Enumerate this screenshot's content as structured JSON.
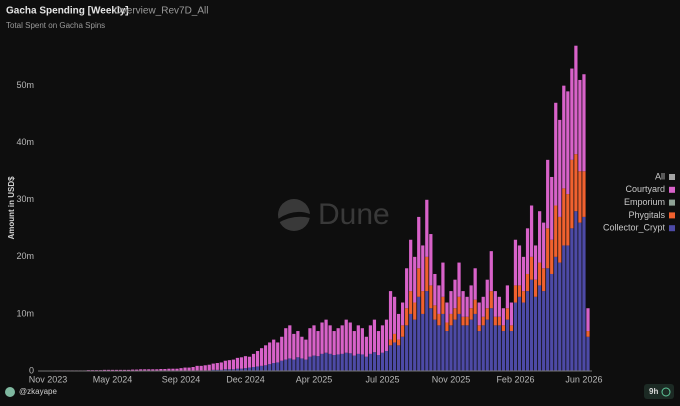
{
  "chart_data": {
    "type": "stacked-bar",
    "title": "Gacha Spending [Weekly]",
    "query_name": "Overview_Rev7D_All",
    "subtitle": "Total Spent on Gacha Spins",
    "y_label": "Amount in USD$",
    "watermark": "Dune",
    "author": "@zkayape",
    "age": "9h",
    "categories": [
      null,
      "Nov 2023",
      null,
      null,
      null,
      null,
      null,
      null,
      null,
      null,
      null,
      null,
      null,
      null,
      null,
      null,
      null,
      "May 2024",
      null,
      null,
      null,
      null,
      null,
      null,
      null,
      null,
      null,
      null,
      null,
      null,
      null,
      null,
      null,
      null,
      "Sep 2024",
      null,
      null,
      null,
      null,
      null,
      null,
      null,
      null,
      null,
      null,
      null,
      null,
      null,
      null,
      null,
      "Dec 2024",
      null,
      null,
      null,
      null,
      null,
      null,
      null,
      null,
      null,
      null,
      null,
      null,
      null,
      null,
      null,
      null,
      "Apr 2025",
      null,
      null,
      null,
      null,
      null,
      null,
      null,
      null,
      null,
      null,
      null,
      null,
      null,
      null,
      null,
      null,
      "Jul 2025",
      null,
      null,
      null,
      null,
      null,
      null,
      null,
      null,
      null,
      null,
      null,
      null,
      null,
      null,
      null,
      null,
      "Nov 2025",
      null,
      null,
      null,
      null,
      null,
      null,
      null,
      null,
      null,
      null,
      null,
      null,
      null,
      null,
      null,
      "Feb 2026",
      null,
      null,
      null,
      null,
      null,
      null,
      null,
      null,
      null,
      null,
      null,
      null,
      null,
      null,
      null,
      null,
      "Jun 2026",
      null
    ],
    "series": [
      {
        "name": "All",
        "color": "#a3a3a3",
        "values": [
          0,
          0,
          0,
          0,
          0,
          0,
          0,
          0,
          0,
          0,
          0,
          0,
          0,
          0,
          0,
          0,
          0,
          0,
          0,
          0,
          0,
          0,
          0,
          0,
          0,
          0,
          0,
          0,
          0,
          0,
          0,
          0,
          0,
          0,
          0,
          0,
          0,
          0,
          0,
          0,
          0,
          0,
          0,
          0,
          0,
          0,
          0,
          0,
          0,
          0,
          0,
          0,
          0,
          0,
          0,
          0,
          0,
          0,
          0,
          0,
          0,
          0,
          0,
          0,
          0,
          0,
          0,
          0,
          0,
          0,
          0,
          0,
          0,
          0,
          0,
          0,
          0,
          0,
          0,
          0,
          0,
          0,
          0,
          0,
          0,
          0,
          0,
          0,
          0,
          0,
          0,
          0,
          0,
          0,
          0,
          0,
          0,
          0,
          0,
          0,
          0,
          0,
          0,
          0,
          0,
          0,
          0,
          0,
          0,
          0,
          0,
          0,
          0,
          0,
          0,
          0,
          0,
          0,
          0,
          0,
          0,
          0,
          0,
          0,
          0,
          0,
          0,
          0,
          0,
          0,
          0,
          0,
          0,
          0,
          0,
          0
        ]
      },
      {
        "name": "Courtyard",
        "color": "#d862c9",
        "values": [
          0.05,
          0.05,
          0.05,
          0.1,
          0.1,
          0.1,
          0.1,
          0.1,
          0.1,
          0.1,
          0.1,
          0.15,
          0.15,
          0.15,
          0.15,
          0.2,
          0.2,
          0.2,
          0.2,
          0.2,
          0.2,
          0.2,
          0.25,
          0.25,
          0.3,
          0.3,
          0.3,
          0.3,
          0.3,
          0.35,
          0.35,
          0.4,
          0.4,
          0.4,
          0.5,
          0.6,
          0.6,
          0.7,
          0.8,
          0.8,
          0.9,
          1.0,
          1.1,
          1.2,
          1.3,
          1.5,
          1.6,
          1.7,
          1.9,
          2.0,
          2.1,
          1.9,
          2.3,
          2.7,
          3.1,
          3.5,
          3.8,
          4.1,
          3.5,
          4.2,
          5.5,
          5.8,
          4.5,
          4.6,
          3.8,
          3.5,
          5.0,
          5.3,
          4.4,
          5.5,
          5.8,
          5.0,
          4.2,
          4.6,
          5.0,
          5.8,
          5.4,
          4.3,
          5.0,
          4.6,
          3.5,
          5.0,
          5.7,
          4.2,
          4.8,
          5.5,
          8.5,
          6.5,
          4.5,
          4,
          7,
          9,
          8,
          9,
          8,
          10,
          9,
          5.5,
          5,
          6,
          3.5,
          4,
          5,
          6,
          4.5,
          3.5,
          4,
          5.5,
          4,
          3.5,
          5,
          7,
          4.5,
          3.5,
          3,
          4,
          4,
          8,
          7,
          6,
          8,
          9,
          6,
          9,
          8,
          12,
          11,
          18,
          17,
          18,
          18,
          16,
          19,
          16,
          17,
          4
        ]
      },
      {
        "name": "Emporium",
        "color": "#8fa396",
        "values": [
          0,
          0,
          0,
          0,
          0,
          0,
          0,
          0,
          0,
          0,
          0,
          0,
          0,
          0,
          0,
          0,
          0,
          0,
          0,
          0,
          0,
          0,
          0,
          0,
          0,
          0,
          0,
          0,
          0,
          0,
          0,
          0,
          0,
          0,
          0,
          0,
          0,
          0,
          0,
          0,
          0,
          0,
          0,
          0,
          0,
          0,
          0,
          0,
          0,
          0,
          0,
          0,
          0,
          0,
          0,
          0,
          0,
          0,
          0,
          0,
          0,
          0,
          0,
          0,
          0,
          0,
          0,
          0,
          0,
          0,
          0,
          0,
          0,
          0,
          0,
          0,
          0,
          0,
          0,
          0,
          0,
          0,
          0,
          0,
          0,
          0,
          0,
          0,
          0,
          0,
          0,
          0,
          0,
          0,
          0,
          0,
          0,
          0,
          0,
          0,
          0,
          0,
          0,
          0,
          0,
          0,
          0,
          0,
          0,
          0,
          0,
          0,
          0,
          0,
          0,
          0,
          0,
          0,
          0,
          0,
          0,
          0,
          0,
          0,
          0,
          0,
          0,
          0,
          0,
          0,
          0,
          0,
          0,
          0,
          0,
          0
        ]
      },
      {
        "name": "Phygitals",
        "color": "#f0612f",
        "values": [
          0,
          0,
          0,
          0,
          0,
          0,
          0,
          0,
          0,
          0,
          0,
          0,
          0,
          0,
          0,
          0,
          0,
          0,
          0,
          0,
          0,
          0,
          0,
          0,
          0,
          0,
          0,
          0,
          0,
          0,
          0,
          0,
          0,
          0,
          0,
          0,
          0,
          0,
          0,
          0,
          0,
          0,
          0,
          0,
          0,
          0,
          0,
          0,
          0,
          0,
          0,
          0,
          0,
          0,
          0,
          0,
          0,
          0,
          0,
          0,
          0,
          0,
          0,
          0,
          0,
          0,
          0,
          0,
          0,
          0,
          0,
          0,
          0,
          0,
          0,
          0,
          0,
          0,
          0,
          0,
          0,
          0,
          0,
          0,
          0,
          0,
          1,
          1.5,
          1,
          2,
          3,
          4,
          3,
          5,
          4,
          6,
          4,
          2.5,
          2,
          3,
          1.5,
          2,
          2,
          3,
          1.5,
          1.5,
          2,
          2.5,
          1,
          1.5,
          2,
          3,
          1.5,
          1.5,
          1,
          2,
          1,
          3,
          2,
          2,
          3,
          4,
          3,
          4,
          4,
          7,
          6,
          9,
          8,
          10,
          9,
          12,
          10,
          9,
          8,
          1
        ]
      },
      {
        "name": "Collector_Crypt",
        "color": "#4d4aa6",
        "values": [
          0,
          0,
          0,
          0,
          0,
          0,
          0,
          0,
          0,
          0,
          0,
          0,
          0,
          0,
          0,
          0,
          0,
          0,
          0,
          0,
          0,
          0,
          0,
          0,
          0,
          0,
          0,
          0,
          0,
          0,
          0,
          0,
          0,
          0,
          0,
          0,
          0,
          0,
          0.1,
          0.1,
          0.1,
          0.1,
          0.2,
          0.2,
          0.2,
          0.3,
          0.3,
          0.3,
          0.4,
          0.4,
          0.5,
          0.6,
          0.7,
          0.8,
          0.9,
          1.0,
          1.2,
          1.4,
          1.5,
          1.8,
          2.0,
          2.2,
          2.0,
          2.4,
          2.2,
          2.0,
          2.5,
          2.7,
          2.6,
          3.0,
          3.2,
          3.0,
          2.8,
          2.9,
          3.0,
          3.2,
          3.1,
          2.7,
          3.0,
          2.9,
          2.5,
          3.0,
          3.3,
          2.8,
          3.2,
          3.5,
          4.5,
          5,
          4.5,
          6,
          8,
          10,
          9,
          13,
          10,
          14,
          11,
          9,
          8,
          10,
          7,
          8,
          9,
          10,
          8,
          8,
          9,
          10,
          7,
          8,
          9,
          11,
          8,
          8,
          7,
          9,
          7,
          12,
          13,
          12,
          14,
          16,
          13,
          15,
          14,
          18,
          17,
          20,
          19,
          22,
          22,
          25,
          28,
          26,
          27,
          6
        ]
      }
    ],
    "ylim": [
      0,
      58
    ],
    "yticks": [
      0,
      {
        "value": 10,
        "label": "10m"
      },
      {
        "value": 20,
        "label": "20m"
      },
      {
        "value": 30,
        "label": "30m"
      },
      {
        "value": 40,
        "label": "40m"
      },
      {
        "value": 50,
        "label": "50m"
      }
    ],
    "grid": false,
    "legend": "right"
  }
}
